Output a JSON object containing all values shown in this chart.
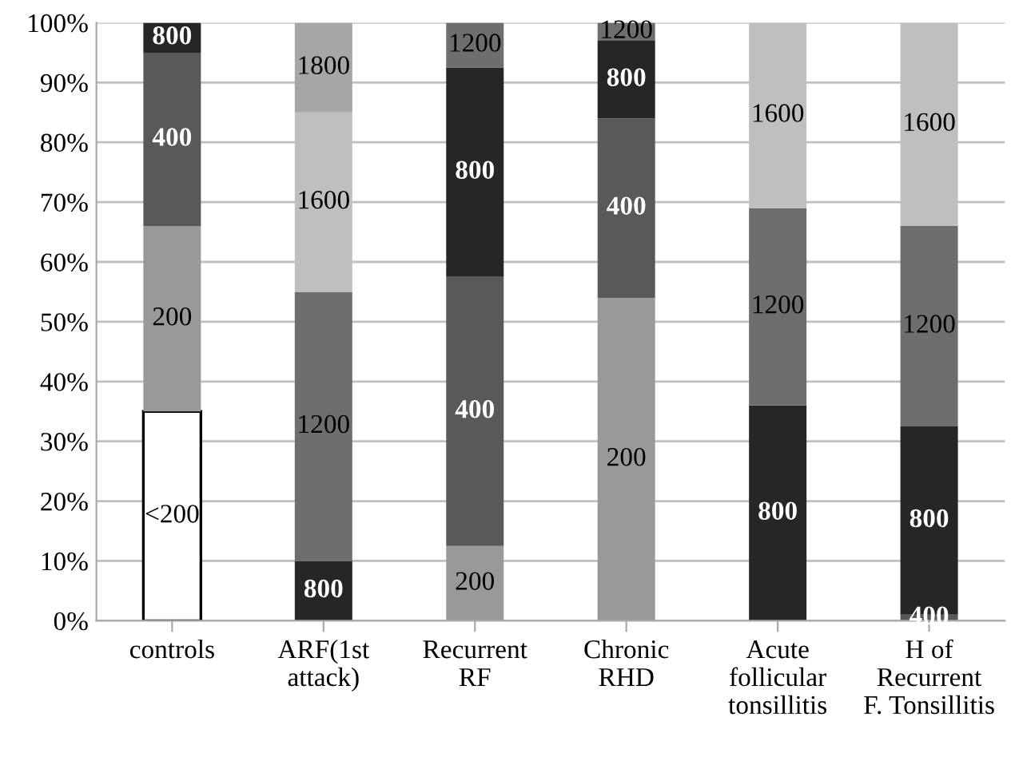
{
  "chart_data": {
    "type": "bar",
    "stacked": true,
    "categories": [
      "controls",
      "ARF(1st\nattack)",
      "Recurrent\nRF",
      "Chronic\nRHD",
      "Acute\nfollicular\ntonsillitis",
      "H of\nRecurrent\nF. Tonsillitis"
    ],
    "series": [
      {
        "name": "<200",
        "color": "#ffffff",
        "values": [
          35,
          null,
          null,
          null,
          null,
          null
        ]
      },
      {
        "name": "200",
        "color": "#999999",
        "values": [
          31,
          null,
          12.5,
          54,
          null,
          null
        ]
      },
      {
        "name": "400",
        "color": "#595959",
        "values": [
          29,
          null,
          45,
          30,
          null,
          1
        ]
      },
      {
        "name": "800",
        "color": "#262626",
        "values": [
          5,
          10,
          35,
          13,
          36,
          31.5
        ]
      },
      {
        "name": "1200",
        "color": "#6e6e6e",
        "values": [
          null,
          45,
          7.5,
          3,
          33,
          33.5
        ]
      },
      {
        "name": "1600",
        "color": "#bfbfbf",
        "values": [
          null,
          30,
          null,
          null,
          31,
          34
        ]
      },
      {
        "name": "1800",
        "color": "#a6a6a6",
        "values": [
          null,
          15,
          null,
          null,
          null,
          null
        ]
      }
    ],
    "ylim": [
      0,
      100
    ],
    "yticks": [
      {
        "value": 0,
        "label": "0%"
      },
      {
        "value": 10,
        "label": "10%"
      },
      {
        "value": 20,
        "label": "20%"
      },
      {
        "value": 30,
        "label": "30%"
      },
      {
        "value": 40,
        "label": "40%"
      },
      {
        "value": 50,
        "label": "50%"
      },
      {
        "value": 60,
        "label": "60%"
      },
      {
        "value": 70,
        "label": "70%"
      },
      {
        "value": 80,
        "label": "80%"
      },
      {
        "value": 90,
        "label": "90%"
      },
      {
        "value": 100,
        "label": "100%"
      }
    ],
    "grid": "y",
    "legend": false
  }
}
